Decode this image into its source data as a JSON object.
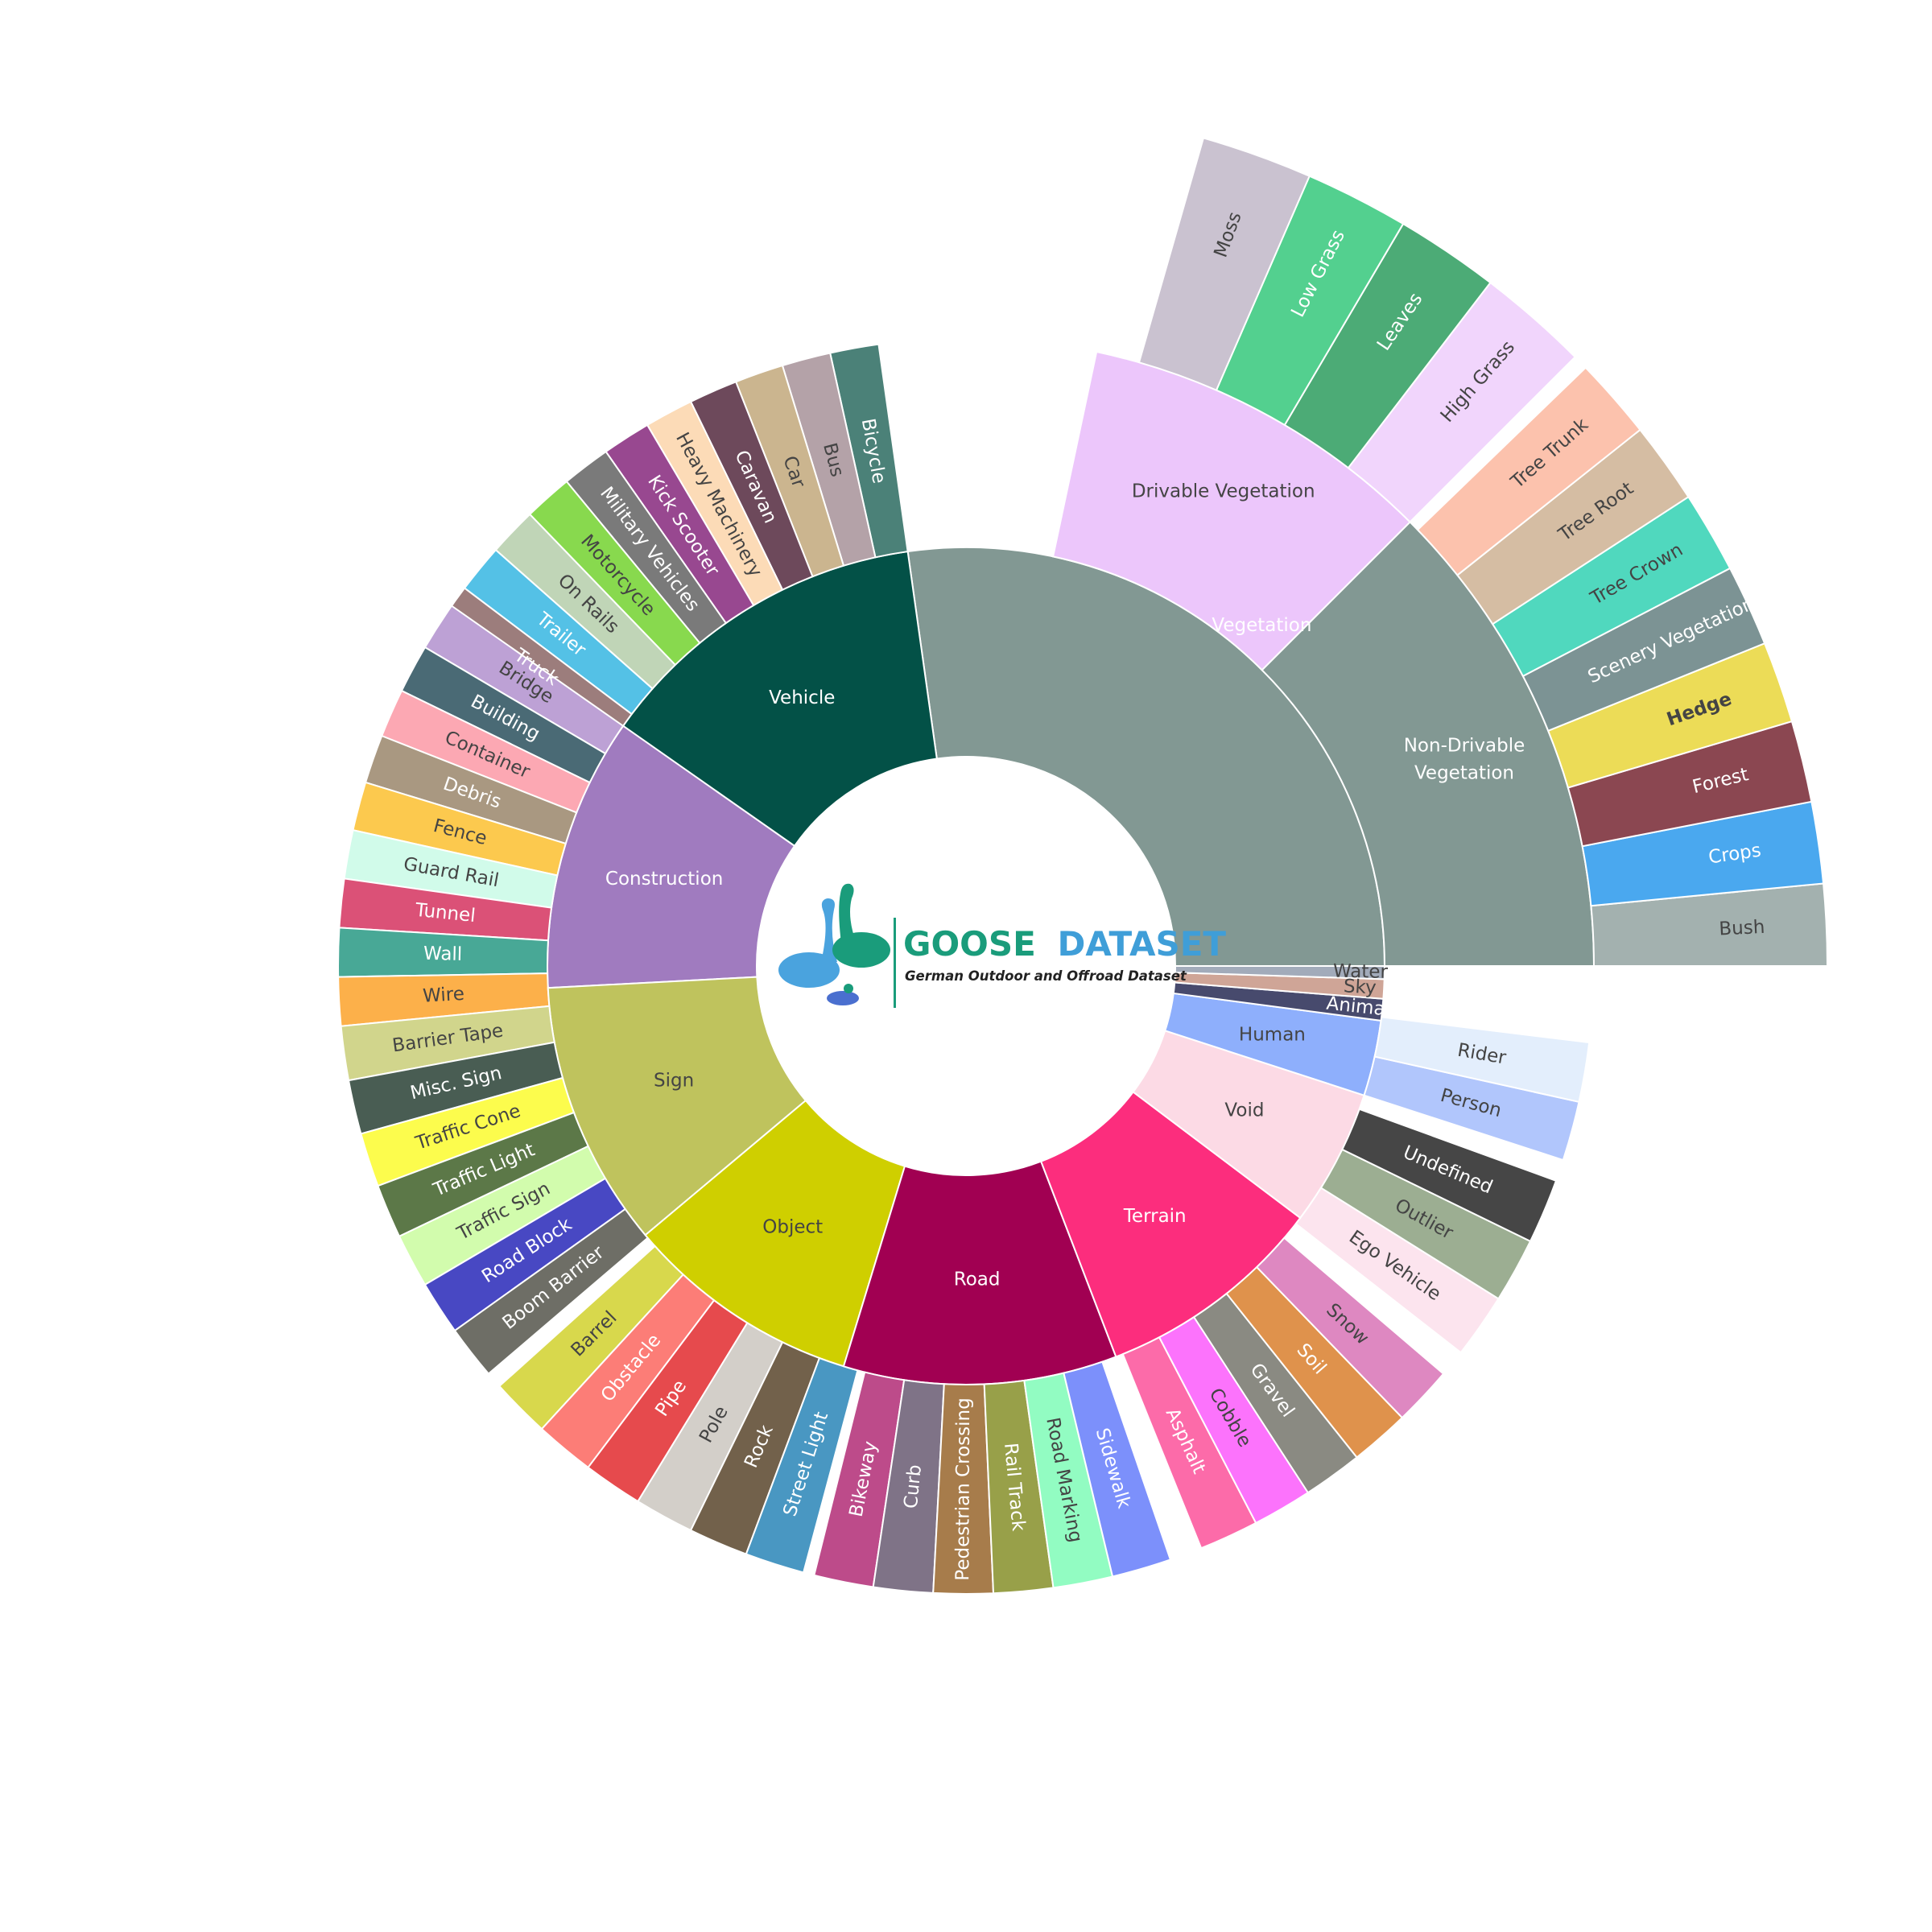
{
  "chart_data": {
    "type": "sunburst",
    "logo": {
      "title_part1": "GOOSE",
      "title_part2": "DATASET",
      "title_part1_color": "#1a9c7b",
      "title_part2_color": "#3f9ed8",
      "subtitle": "German Outdoor and Offroad Dataset"
    },
    "categories": [
      {
        "name": "Vegetation",
        "color": "#829893",
        "start_deg": 0,
        "end_deg": 98,
        "children": [
          {
            "name": "Non-Drivable Vegetation",
            "display_lines": [
              "Non-Drivable",
              "Vegetation"
            ],
            "color": "#829893",
            "start_deg": 0,
            "end_deg": 45,
            "children": [
              {
                "name": "Bush",
                "color": "#a3b1af",
                "start_deg": 0,
                "end_deg": 5.5
              },
              {
                "name": "Crops",
                "color": "#4aa8ef",
                "start_deg": 5.5,
                "end_deg": 11
              },
              {
                "name": "Forest",
                "color": "#8b4751",
                "start_deg": 11,
                "end_deg": 16.5
              },
              {
                "name": "Hedge",
                "color": "#ecdc57",
                "start_deg": 16.5,
                "end_deg": 22,
                "bold": true
              },
              {
                "name": "Scenery Vegetation",
                "color": "#7c9394",
                "start_deg": 22,
                "end_deg": 27.5
              },
              {
                "name": "Tree Crown",
                "color": "#50d8be",
                "start_deg": 27.5,
                "end_deg": 33
              },
              {
                "name": "Tree Root",
                "color": "#d5bda3",
                "start_deg": 33,
                "end_deg": 38.5
              },
              {
                "name": "Tree Trunk",
                "color": "#fcc2ad",
                "start_deg": 38.5,
                "end_deg": 44
              }
            ]
          },
          {
            "name": "Drivable Vegetation",
            "color": "#ecc6fb",
            "start_deg": 45,
            "end_deg": 78,
            "children": [
              {
                "name": "High Grass",
                "color": "#f1d5fc",
                "start_deg": 45,
                "end_deg": 52.5
              },
              {
                "name": "Leaves",
                "color": "#4cab76",
                "start_deg": 52.5,
                "end_deg": 59.5
              },
              {
                "name": "Low Grass",
                "color": "#53d08f",
                "start_deg": 59.5,
                "end_deg": 66.5
              },
              {
                "name": "Moss",
                "color": "#cac2d0",
                "start_deg": 66.5,
                "end_deg": 74
              }
            ]
          }
        ]
      },
      {
        "name": "Vehicle",
        "color": "#035147",
        "start_deg": 98,
        "end_deg": 145,
        "children": [
          {
            "name": "Bicycle",
            "color": "#4b8178",
            "start_deg": 98,
            "end_deg": 102.5
          },
          {
            "name": "Bus",
            "color": "#b4a2a8",
            "start_deg": 102.5,
            "end_deg": 107
          },
          {
            "name": "Car",
            "color": "#cbb58f",
            "start_deg": 107,
            "end_deg": 111.5
          },
          {
            "name": "Caravan",
            "color": "#6d495b",
            "start_deg": 111.5,
            "end_deg": 116
          },
          {
            "name": "Heavy Machinery",
            "color": "#fcdbb7",
            "start_deg": 116,
            "end_deg": 120.5
          },
          {
            "name": "Kick Scooter",
            "color": "#984890",
            "start_deg": 120.5,
            "end_deg": 125
          },
          {
            "name": "Military Vehicles",
            "color": "#7a7a7a",
            "start_deg": 125,
            "end_deg": 129.5
          },
          {
            "name": "Motorcycle",
            "color": "#88d94e",
            "start_deg": 129.5,
            "end_deg": 134
          },
          {
            "name": "On Rails",
            "color": "#c0d5b7",
            "start_deg": 134,
            "end_deg": 138.5
          },
          {
            "name": "Trailer",
            "color": "#54c1e6",
            "start_deg": 138.5,
            "end_deg": 143
          },
          {
            "name": "Truck",
            "color": "#9c7d7c",
            "start_deg": 143,
            "end_deg": 147.5
          }
        ]
      },
      {
        "name": "Construction",
        "color": "#a07bbf",
        "start_deg": 145,
        "end_deg": 183,
        "children": [
          {
            "name": "Bridge",
            "color": "#bda1d5",
            "start_deg": 145,
            "end_deg": 149.5
          },
          {
            "name": "Building",
            "color": "#4a6a75",
            "start_deg": 149.5,
            "end_deg": 154
          },
          {
            "name": "Container",
            "color": "#fca8b3",
            "start_deg": 154,
            "end_deg": 158.5
          },
          {
            "name": "Debris",
            "color": "#a99881",
            "start_deg": 158.5,
            "end_deg": 163
          },
          {
            "name": "Fence",
            "color": "#fcc94e",
            "start_deg": 163,
            "end_deg": 167.5
          },
          {
            "name": "Guard Rail",
            "color": "#d1fbea",
            "start_deg": 167.5,
            "end_deg": 172
          },
          {
            "name": "Tunnel",
            "color": "#db5177",
            "start_deg": 172,
            "end_deg": 176.5
          },
          {
            "name": "Wall",
            "color": "#48a896",
            "start_deg": 176.5,
            "end_deg": 181
          },
          {
            "name": "Wire",
            "color": "#fcb04a",
            "start_deg": 181,
            "end_deg": 185.5
          }
        ]
      },
      {
        "name": "Sign",
        "color": "#bfc35d",
        "start_deg": 183,
        "end_deg": 220,
        "children": [
          {
            "name": "Barrier Tape",
            "color": "#d1d58c",
            "start_deg": 185.5,
            "end_deg": 190.5
          },
          {
            "name": "Misc. Sign",
            "color": "#495d53",
            "start_deg": 190.5,
            "end_deg": 195.5
          },
          {
            "name": "Traffic Cone",
            "color": "#fcfc4d",
            "start_deg": 195.5,
            "end_deg": 200.5
          },
          {
            "name": "Traffic Light",
            "color": "#5c7848",
            "start_deg": 200.5,
            "end_deg": 205.5
          },
          {
            "name": "Traffic Sign",
            "color": "#d2fcad",
            "start_deg": 205.5,
            "end_deg": 210.5
          },
          {
            "name": "Road Block",
            "color": "#4848c3",
            "start_deg": 210.5,
            "end_deg": 215.5
          },
          {
            "name": "Boom Barrier",
            "color": "#6e6e66",
            "start_deg": 215.5,
            "end_deg": 220.5
          }
        ]
      },
      {
        "name": "Object",
        "color": "#cfcf00",
        "start_deg": 220,
        "end_deg": 253,
        "children": [
          {
            "name": "Barrel",
            "color": "#d8d84c",
            "start_deg": 222,
            "end_deg": 227.5
          },
          {
            "name": "Obstacle",
            "color": "#fc7d77",
            "start_deg": 227.5,
            "end_deg": 233
          },
          {
            "name": "Pipe",
            "color": "#e64a4d",
            "start_deg": 233,
            "end_deg": 238.5
          },
          {
            "name": "Pole",
            "color": "#d3cfc9",
            "start_deg": 238.5,
            "end_deg": 244
          },
          {
            "name": "Rock",
            "color": "#72614b",
            "start_deg": 244,
            "end_deg": 249.5
          },
          {
            "name": "Street Light",
            "color": "#4997c2",
            "start_deg": 249.5,
            "end_deg": 255
          }
        ]
      },
      {
        "name": "Road",
        "color": "#a10052",
        "start_deg": 253,
        "end_deg": 291,
        "children": [
          {
            "name": "Bikeway",
            "color": "#bd4b8a",
            "start_deg": 256,
            "end_deg": 261.5
          },
          {
            "name": "Curb",
            "color": "#7f7387",
            "start_deg": 261.5,
            "end_deg": 267
          },
          {
            "name": "Pedestrian Crossing",
            "color": "#a77c4b",
            "start_deg": 267,
            "end_deg": 272.5
          },
          {
            "name": "Rail Track",
            "color": "#98a049",
            "start_deg": 272.5,
            "end_deg": 278
          },
          {
            "name": "Road Marking",
            "color": "#92fcc2",
            "start_deg": 278,
            "end_deg": 283.5
          },
          {
            "name": "Sidewalk",
            "color": "#7c90fb",
            "start_deg": 283.5,
            "end_deg": 289
          }
        ]
      },
      {
        "name": "Terrain",
        "color": "#fc2d7d",
        "start_deg": 291,
        "end_deg": 323,
        "children": [
          {
            "name": "Asphalt",
            "color": "#fc6ba9",
            "start_deg": 292,
            "end_deg": 297.5
          },
          {
            "name": "Cobble",
            "color": "#fc73fc",
            "start_deg": 297.5,
            "end_deg": 303
          },
          {
            "name": "Gravel",
            "color": "#8a8a82",
            "start_deg": 303,
            "end_deg": 308.5
          },
          {
            "name": "Soil",
            "color": "#df924c",
            "start_deg": 308.5,
            "end_deg": 314
          },
          {
            "name": "Snow",
            "color": "#de88c1",
            "start_deg": 314,
            "end_deg": 319.5
          }
        ]
      },
      {
        "name": "Void",
        "color": "#fcdae5",
        "start_deg": 323,
        "end_deg": 342,
        "children": [
          {
            "name": "Ego Vehicle",
            "color": "#fce4ee",
            "start_deg": 322,
            "end_deg": 328
          },
          {
            "name": "Outlier",
            "color": "#9cae92",
            "start_deg": 328,
            "end_deg": 334
          },
          {
            "name": "Undefined",
            "color": "#464646",
            "start_deg": 334,
            "end_deg": 340
          }
        ]
      },
      {
        "name": "Human",
        "color": "#8eaffc",
        "start_deg": 342,
        "end_deg": 352.5,
        "children": [
          {
            "name": "Person",
            "color": "#b1c6fc",
            "start_deg": 342,
            "end_deg": 347.5
          },
          {
            "name": "Rider",
            "color": "#e3eefc",
            "start_deg": 347.5,
            "end_deg": 353
          }
        ]
      },
      {
        "name": "Animal",
        "color": "#474a6d",
        "start_deg": 352.5,
        "end_deg": 355.5,
        "children": []
      },
      {
        "name": "Sky",
        "color": "#cfa597",
        "start_deg": 355.5,
        "end_deg": 358.2,
        "children": []
      },
      {
        "name": "Water",
        "color": "#a2abba",
        "start_deg": 358.2,
        "end_deg": 360,
        "children": []
      }
    ]
  }
}
